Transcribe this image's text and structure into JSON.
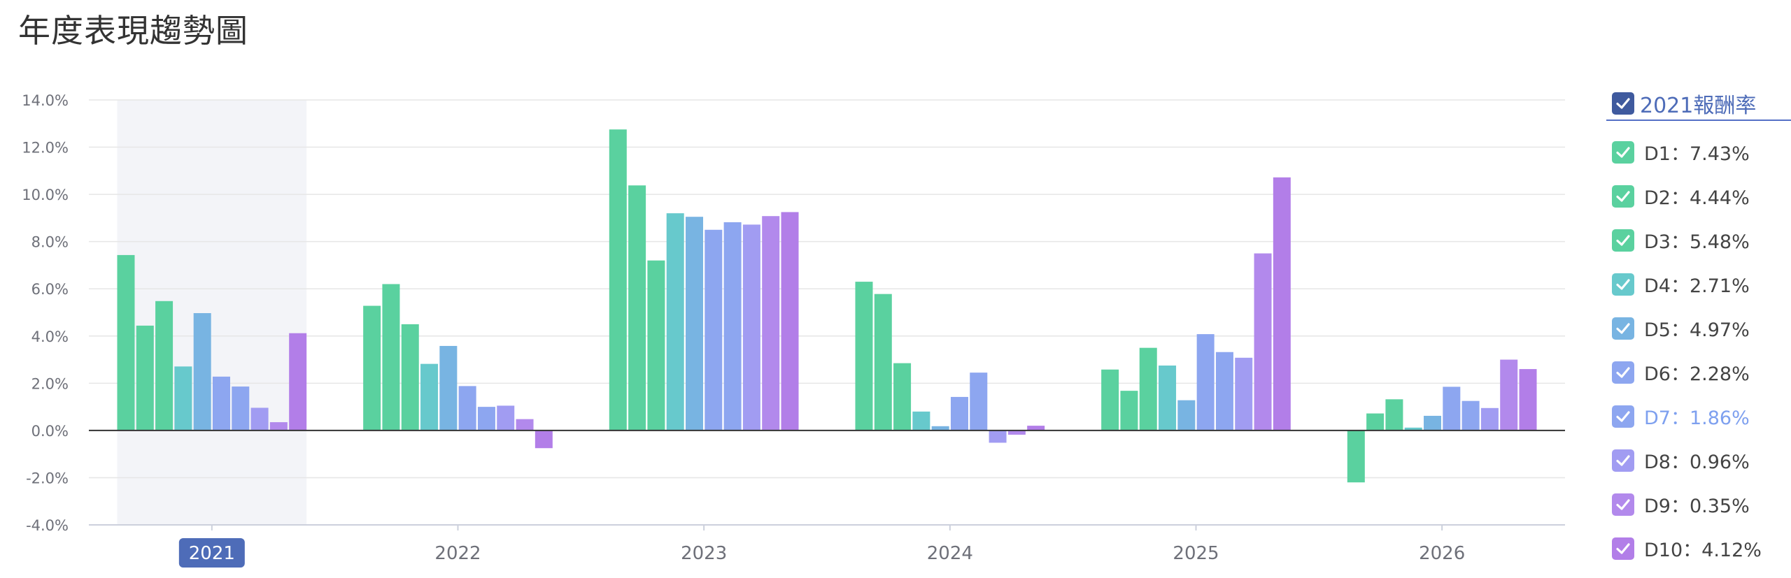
{
  "page": {
    "title": "年度表現趨勢圖"
  },
  "legend": {
    "header": "2021報酬率",
    "header_color": "#3f5a9e",
    "highlighted_index": 6,
    "items": [
      {
        "label": "D1：7.43%",
        "color": "#5ad19f"
      },
      {
        "label": "D2：4.44%",
        "color": "#5ad19f"
      },
      {
        "label": "D3：5.48%",
        "color": "#5ad19f"
      },
      {
        "label": "D4：2.71%",
        "color": "#67c9cc"
      },
      {
        "label": "D5：4.97%",
        "color": "#78b4e2"
      },
      {
        "label": "D6：2.28%",
        "color": "#8da6f0"
      },
      {
        "label": "D7：1.86%",
        "color": "#8da6f0"
      },
      {
        "label": "D8：0.96%",
        "color": "#a19cf2"
      },
      {
        "label": "D9：0.35%",
        "color": "#b289ec"
      },
      {
        "label": "D10：4.12%",
        "color": "#b27ee8"
      }
    ]
  },
  "chart_data": {
    "type": "bar",
    "categories": [
      "2021",
      "2022",
      "2023",
      "2024",
      "2025",
      "2026"
    ],
    "selected_category": "2021",
    "series": [
      {
        "name": "D1",
        "color": "#5ad19f",
        "values": [
          7.43,
          5.28,
          12.75,
          6.3,
          2.58,
          -2.2
        ]
      },
      {
        "name": "D2",
        "color": "#5ad19f",
        "values": [
          4.44,
          6.2,
          10.38,
          5.78,
          1.68,
          0.72
        ]
      },
      {
        "name": "D3",
        "color": "#5ad19f",
        "values": [
          5.48,
          4.5,
          7.2,
          2.85,
          3.5,
          1.32
        ]
      },
      {
        "name": "D4",
        "color": "#67c9cc",
        "values": [
          2.71,
          2.82,
          9.2,
          0.8,
          2.75,
          0.12
        ]
      },
      {
        "name": "D5",
        "color": "#78b4e2",
        "values": [
          4.97,
          3.58,
          9.05,
          0.18,
          1.28,
          0.62
        ]
      },
      {
        "name": "D6",
        "color": "#8da6f0",
        "values": [
          2.28,
          1.88,
          8.5,
          1.42,
          4.08,
          1.85
        ]
      },
      {
        "name": "D7",
        "color": "#8da6f0",
        "values": [
          1.86,
          1.0,
          8.82,
          2.45,
          3.32,
          1.25
        ]
      },
      {
        "name": "D8",
        "color": "#a19cf2",
        "values": [
          0.96,
          1.05,
          8.72,
          -0.52,
          3.08,
          0.95
        ]
      },
      {
        "name": "D9",
        "color": "#b289ec",
        "values": [
          0.35,
          0.48,
          9.08,
          -0.18,
          7.5,
          3.0
        ]
      },
      {
        "name": "D10",
        "color": "#b27ee8",
        "values": [
          4.12,
          -0.75,
          9.25,
          0.2,
          10.72,
          2.6
        ]
      }
    ],
    "ylim": [
      -4,
      14
    ],
    "yticks": [
      "14.0%",
      "12.0%",
      "10.0%",
      "8.0%",
      "6.0%",
      "4.0%",
      "2.0%",
      "0.0%",
      "-2.0%",
      "-4.0%"
    ],
    "ytick_values": [
      14,
      12,
      10,
      8,
      6,
      4,
      2,
      0,
      -2,
      -4
    ],
    "grid": true,
    "legend_position": "right",
    "selected_label_bg": "#4e6cb8",
    "highlight_band_color": "#f3f4f8",
    "grid_color": "#e6e6e6",
    "axis_color": "#333333"
  }
}
